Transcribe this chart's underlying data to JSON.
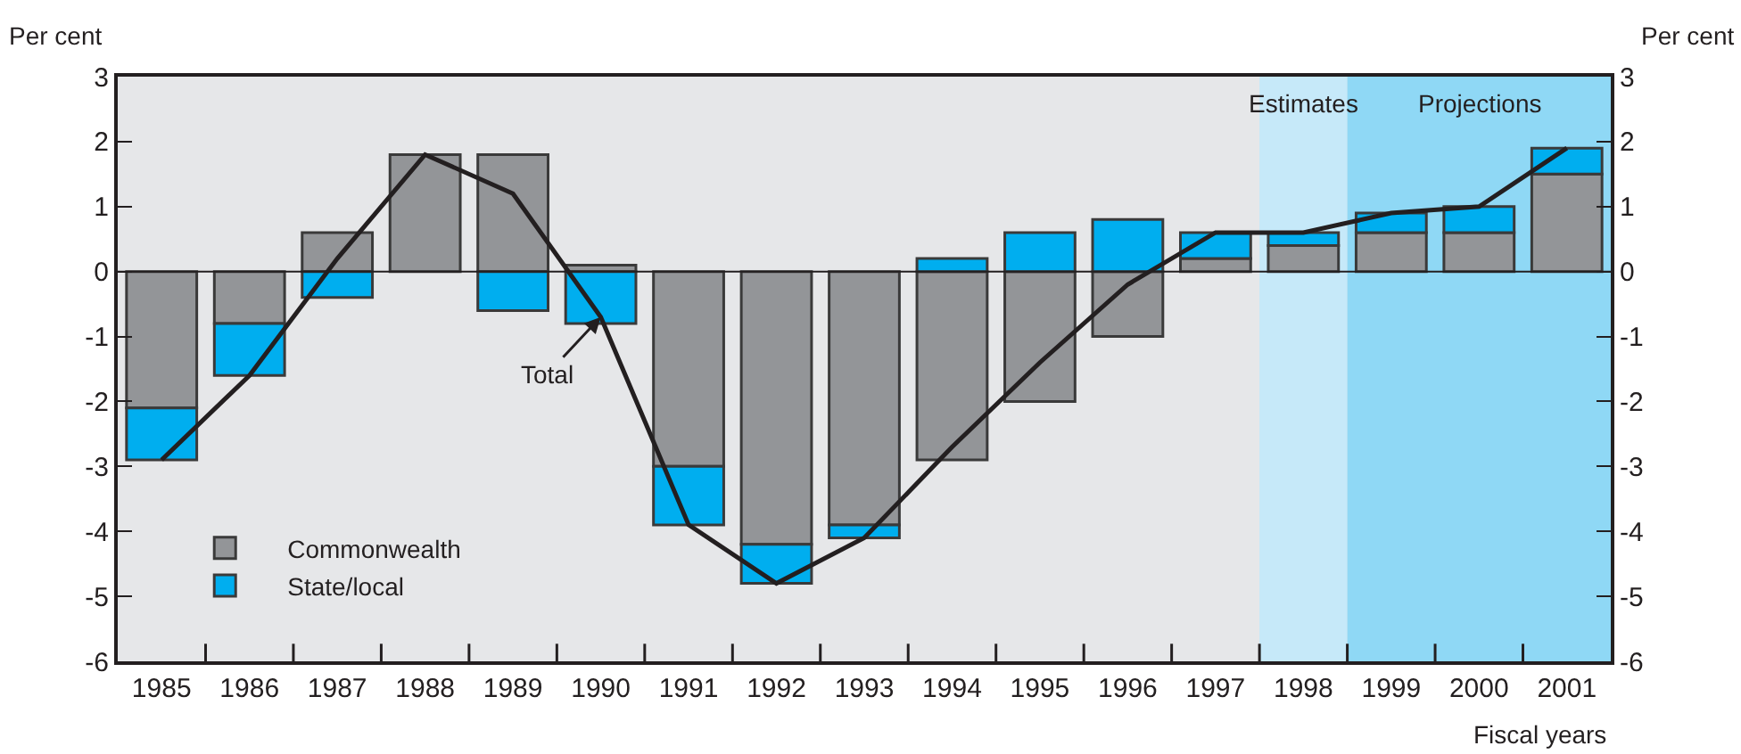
{
  "chart_data": {
    "type": "bar",
    "stacked": true,
    "ylabel": "Per cent",
    "y2label": "Per cent",
    "xlabel": "Fiscal years",
    "categories": [
      "1985",
      "1986",
      "1987",
      "1988",
      "1989",
      "1990",
      "1991",
      "1992",
      "1993",
      "1994",
      "1995",
      "1996",
      "1997",
      "1998",
      "1999",
      "2000",
      "2001"
    ],
    "series": [
      {
        "name": "Commonwealth",
        "color": "#939598",
        "values": [
          -2.1,
          -0.8,
          0.6,
          1.8,
          1.8,
          0.1,
          -3.0,
          -4.2,
          -3.9,
          -2.9,
          -2.0,
          -1.0,
          0.2,
          0.4,
          0.6,
          0.6,
          1.5
        ]
      },
      {
        "name": "State/local",
        "color": "#00aeef",
        "values": [
          -0.8,
          -0.8,
          -0.4,
          null,
          -0.6,
          -0.8,
          -0.9,
          -0.6,
          -0.2,
          0.2,
          0.6,
          0.8,
          0.4,
          0.2,
          0.3,
          0.4,
          0.4
        ]
      },
      {
        "type": "line",
        "color": "#231f20",
        "marker": "none",
        "line_style": "solid",
        "values": [
          -2.9,
          -1.6,
          0.2,
          1.8,
          1.2,
          -0.7,
          -3.9,
          -4.8,
          -4.1,
          -2.7,
          -1.4,
          -0.2,
          0.6,
          0.6,
          0.9,
          1.0,
          1.9
        ]
      }
    ],
    "ylim": [
      -6,
      3
    ],
    "yticks": [
      -6,
      -5,
      -4,
      -3,
      -2,
      -1,
      0,
      1,
      2,
      3
    ],
    "y2lim": [
      -6,
      3
    ],
    "y2ticks": [
      -6,
      -5,
      -4,
      -3,
      -2,
      -1,
      0,
      1,
      2,
      3
    ],
    "bands": [
      {
        "axis": "x",
        "from": "1998",
        "to": "1998",
        "label": "Estimates",
        "color": "#c6e9f9"
      },
      {
        "axis": "x",
        "from": "1999",
        "to": "2001",
        "label": "Projections",
        "color": "#8fd8f5"
      }
    ],
    "ref_lines": [
      {
        "axis": "y",
        "value": 0,
        "color": "#231f20"
      }
    ],
    "annotations": [
      {
        "text": "Total",
        "x": "1990",
        "y": -0.7
      }
    ],
    "legend": "bottom left",
    "grid": false
  }
}
